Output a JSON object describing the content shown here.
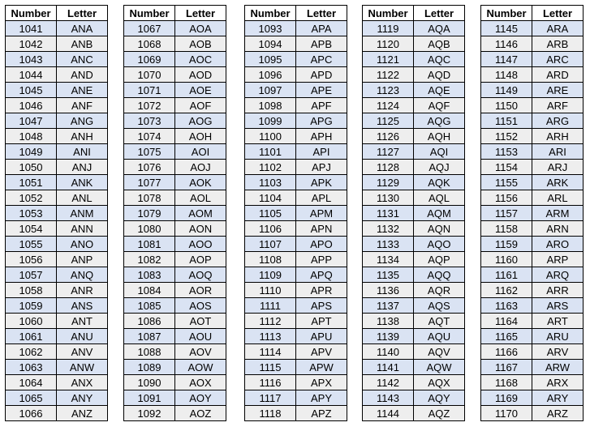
{
  "tables": [
    {
      "header": [
        "Number",
        "Letter"
      ],
      "rows": [
        [
          1041,
          "ANA"
        ],
        [
          1042,
          "ANB"
        ],
        [
          1043,
          "ANC"
        ],
        [
          1044,
          "AND"
        ],
        [
          1045,
          "ANE"
        ],
        [
          1046,
          "ANF"
        ],
        [
          1047,
          "ANG"
        ],
        [
          1048,
          "ANH"
        ],
        [
          1049,
          "ANI"
        ],
        [
          1050,
          "ANJ"
        ],
        [
          1051,
          "ANK"
        ],
        [
          1052,
          "ANL"
        ],
        [
          1053,
          "ANM"
        ],
        [
          1054,
          "ANN"
        ],
        [
          1055,
          "ANO"
        ],
        [
          1056,
          "ANP"
        ],
        [
          1057,
          "ANQ"
        ],
        [
          1058,
          "ANR"
        ],
        [
          1059,
          "ANS"
        ],
        [
          1060,
          "ANT"
        ],
        [
          1061,
          "ANU"
        ],
        [
          1062,
          "ANV"
        ],
        [
          1063,
          "ANW"
        ],
        [
          1064,
          "ANX"
        ],
        [
          1065,
          "ANY"
        ],
        [
          1066,
          "ANZ"
        ]
      ]
    },
    {
      "header": [
        "Number",
        "Letter"
      ],
      "rows": [
        [
          1067,
          "AOA"
        ],
        [
          1068,
          "AOB"
        ],
        [
          1069,
          "AOC"
        ],
        [
          1070,
          "AOD"
        ],
        [
          1071,
          "AOE"
        ],
        [
          1072,
          "AOF"
        ],
        [
          1073,
          "AOG"
        ],
        [
          1074,
          "AOH"
        ],
        [
          1075,
          "AOI"
        ],
        [
          1076,
          "AOJ"
        ],
        [
          1077,
          "AOK"
        ],
        [
          1078,
          "AOL"
        ],
        [
          1079,
          "AOM"
        ],
        [
          1080,
          "AON"
        ],
        [
          1081,
          "AOO"
        ],
        [
          1082,
          "AOP"
        ],
        [
          1083,
          "AOQ"
        ],
        [
          1084,
          "AOR"
        ],
        [
          1085,
          "AOS"
        ],
        [
          1086,
          "AOT"
        ],
        [
          1087,
          "AOU"
        ],
        [
          1088,
          "AOV"
        ],
        [
          1089,
          "AOW"
        ],
        [
          1090,
          "AOX"
        ],
        [
          1091,
          "AOY"
        ],
        [
          1092,
          "AOZ"
        ]
      ]
    },
    {
      "header": [
        "Number",
        "Letter"
      ],
      "rows": [
        [
          1093,
          "APA"
        ],
        [
          1094,
          "APB"
        ],
        [
          1095,
          "APC"
        ],
        [
          1096,
          "APD"
        ],
        [
          1097,
          "APE"
        ],
        [
          1098,
          "APF"
        ],
        [
          1099,
          "APG"
        ],
        [
          1100,
          "APH"
        ],
        [
          1101,
          "API"
        ],
        [
          1102,
          "APJ"
        ],
        [
          1103,
          "APK"
        ],
        [
          1104,
          "APL"
        ],
        [
          1105,
          "APM"
        ],
        [
          1106,
          "APN"
        ],
        [
          1107,
          "APO"
        ],
        [
          1108,
          "APP"
        ],
        [
          1109,
          "APQ"
        ],
        [
          1110,
          "APR"
        ],
        [
          1111,
          "APS"
        ],
        [
          1112,
          "APT"
        ],
        [
          1113,
          "APU"
        ],
        [
          1114,
          "APV"
        ],
        [
          1115,
          "APW"
        ],
        [
          1116,
          "APX"
        ],
        [
          1117,
          "APY"
        ],
        [
          1118,
          "APZ"
        ]
      ]
    },
    {
      "header": [
        "Number",
        "Letter"
      ],
      "rows": [
        [
          1119,
          "AQA"
        ],
        [
          1120,
          "AQB"
        ],
        [
          1121,
          "AQC"
        ],
        [
          1122,
          "AQD"
        ],
        [
          1123,
          "AQE"
        ],
        [
          1124,
          "AQF"
        ],
        [
          1125,
          "AQG"
        ],
        [
          1126,
          "AQH"
        ],
        [
          1127,
          "AQI"
        ],
        [
          1128,
          "AQJ"
        ],
        [
          1129,
          "AQK"
        ],
        [
          1130,
          "AQL"
        ],
        [
          1131,
          "AQM"
        ],
        [
          1132,
          "AQN"
        ],
        [
          1133,
          "AQO"
        ],
        [
          1134,
          "AQP"
        ],
        [
          1135,
          "AQQ"
        ],
        [
          1136,
          "AQR"
        ],
        [
          1137,
          "AQS"
        ],
        [
          1138,
          "AQT"
        ],
        [
          1139,
          "AQU"
        ],
        [
          1140,
          "AQV"
        ],
        [
          1141,
          "AQW"
        ],
        [
          1142,
          "AQX"
        ],
        [
          1143,
          "AQY"
        ],
        [
          1144,
          "AQZ"
        ]
      ]
    },
    {
      "header": [
        "Number",
        "Letter"
      ],
      "rows": [
        [
          1145,
          "ARA"
        ],
        [
          1146,
          "ARB"
        ],
        [
          1147,
          "ARC"
        ],
        [
          1148,
          "ARD"
        ],
        [
          1149,
          "ARE"
        ],
        [
          1150,
          "ARF"
        ],
        [
          1151,
          "ARG"
        ],
        [
          1152,
          "ARH"
        ],
        [
          1153,
          "ARI"
        ],
        [
          1154,
          "ARJ"
        ],
        [
          1155,
          "ARK"
        ],
        [
          1156,
          "ARL"
        ],
        [
          1157,
          "ARM"
        ],
        [
          1158,
          "ARN"
        ],
        [
          1159,
          "ARO"
        ],
        [
          1160,
          "ARP"
        ],
        [
          1161,
          "ARQ"
        ],
        [
          1162,
          "ARR"
        ],
        [
          1163,
          "ARS"
        ],
        [
          1164,
          "ART"
        ],
        [
          1165,
          "ARU"
        ],
        [
          1166,
          "ARV"
        ],
        [
          1167,
          "ARW"
        ],
        [
          1168,
          "ARX"
        ],
        [
          1169,
          "ARY"
        ],
        [
          1170,
          "ARZ"
        ]
      ]
    }
  ]
}
